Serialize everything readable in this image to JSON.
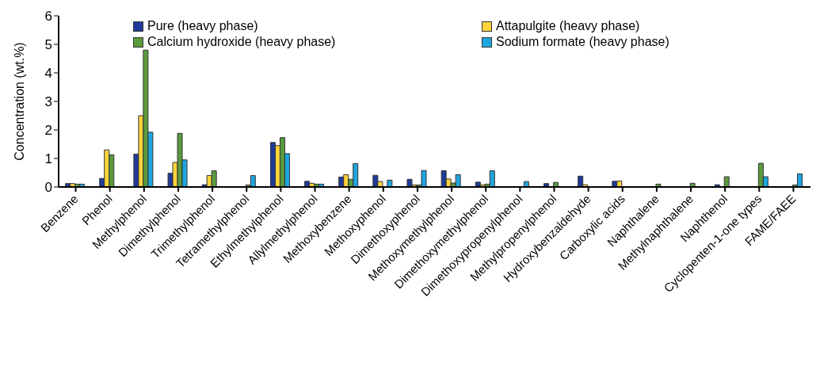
{
  "chart_data": {
    "type": "bar",
    "ylabel": "Concentration (wt.%)",
    "categories": [
      "Benzene",
      "Phenol",
      "Methylphenol",
      "Dimethylphenol",
      "Trimethylphenol",
      "Tetramethylphenol",
      "Ethylmethylphenol",
      "Allylmethylphenol",
      "Methoxybenzene",
      "Methoxyphenol",
      "Dimethoxyphenol",
      "Methoxymethylphenol",
      "Dimethoxymethylphenol",
      "Dimethoxypropenylphenol",
      "Methylpropenylphenol",
      "Hydroxybenzaldehyde",
      "Carboxylic acids",
      "Naphthalene",
      "Methylnaphthalene",
      "Naphthenol",
      "Cyclopenten-1-one types",
      "FAME/FAEE"
    ],
    "series": [
      {
        "name": "Pure (heavy phase)",
        "color": "#1f3b99",
        "values": [
          0.12,
          0.3,
          1.15,
          0.48,
          0.08,
          0,
          1.56,
          0.2,
          0.35,
          0.41,
          0.27,
          0.57,
          0.17,
          0,
          0.12,
          0.38,
          0.2,
          0,
          0,
          0.08,
          0,
          0
        ]
      },
      {
        "name": "Attapulgite (heavy phase)",
        "color": "#ffd43b",
        "values": [
          0.12,
          1.3,
          2.5,
          0.86,
          0.4,
          0,
          1.45,
          0.13,
          0.43,
          0.19,
          0.07,
          0.28,
          0.07,
          0,
          0,
          0.08,
          0.21,
          0,
          0,
          0,
          0,
          0
        ]
      },
      {
        "name": "Calcium hydroxide (heavy phase)",
        "color": "#5a9a3c",
        "values": [
          0.1,
          1.13,
          4.8,
          1.88,
          0.57,
          0.07,
          1.73,
          0.1,
          0.27,
          0,
          0.07,
          0.14,
          0.1,
          0,
          0.16,
          0,
          0,
          0.1,
          0.13,
          0.36,
          0.83,
          0.07
        ]
      },
      {
        "name": "Sodium formate (heavy phase)",
        "color": "#1ea6e0",
        "values": [
          0.1,
          0,
          1.92,
          0.95,
          0,
          0.4,
          1.17,
          0.1,
          0.82,
          0.24,
          0.58,
          0.43,
          0.57,
          0.19,
          0,
          0,
          0,
          0,
          0,
          0,
          0.36,
          0.46
        ]
      }
    ],
    "ylim": [
      0,
      6
    ],
    "yticks": [
      0,
      1,
      2,
      3,
      4,
      5,
      6
    ],
    "grid": false,
    "legend": "top"
  }
}
